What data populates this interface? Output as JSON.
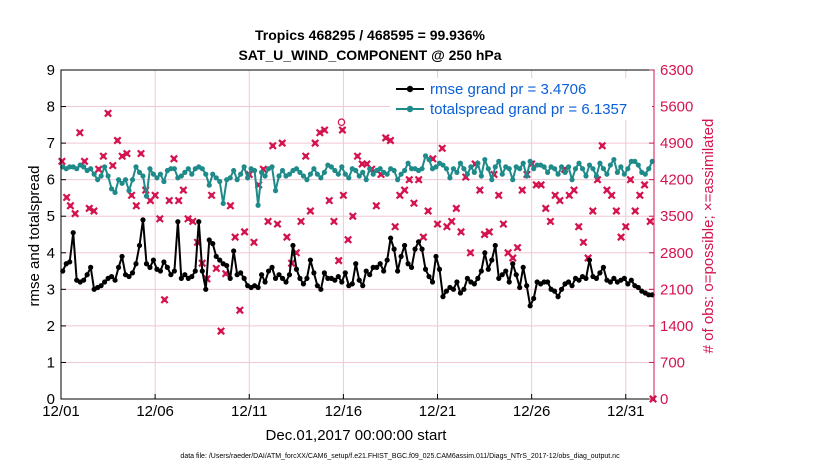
{
  "chart_data": {
    "type": "line",
    "title_line1": "Tropics 468295 / 468595 = 99.936%",
    "title_line2": "SAT_U_WIND_COMPONENT @ 250 hPa",
    "xlabel": "Dec.01,2017 00:00:00 start",
    "ylabel_left": "rmse and totalspread",
    "ylabel_right": "# of obs: o=possible; ×=assimilated",
    "footer": "data file: /Users/raeder/DAI/ATM_forcXX/CAM6_setup/f.e21.FHIST_BGC.f09_025.CAM6assim.011/Diags_NTrS_2017-12/obs_diag_output.nc",
    "x_ticks": [
      "12/01",
      "12/06",
      "12/11",
      "12/16",
      "12/21",
      "12/26",
      "12/31"
    ],
    "x_tick_days": [
      0,
      5,
      10,
      15,
      20,
      25,
      30
    ],
    "xlim": [
      0,
      31.5
    ],
    "y_left_ticks": [
      "0",
      "1",
      "2",
      "3",
      "4",
      "5",
      "6",
      "7",
      "8",
      "9"
    ],
    "ylim_left": [
      0,
      9
    ],
    "y_right_ticks": [
      "0",
      "700",
      "1400",
      "2100",
      "2800",
      "3500",
      "4200",
      "4900",
      "5600",
      "6300"
    ],
    "ylim_right": [
      0,
      6300
    ],
    "series": [
      {
        "name": "rmse grand pr = 3.4706",
        "legend": "rmse grand pr = 3.4706",
        "axis": "left",
        "color": "#000000",
        "values": [
          3.5,
          3.7,
          3.75,
          4.55,
          3.25,
          3.2,
          3.25,
          3.4,
          3.6,
          3.0,
          3.05,
          3.1,
          3.2,
          3.3,
          3.35,
          3.25,
          3.6,
          3.9,
          3.4,
          3.35,
          3.45,
          3.7,
          4.2,
          4.9,
          3.7,
          3.6,
          3.8,
          3.55,
          3.5,
          3.75,
          3.6,
          3.4,
          3.5,
          4.85,
          3.3,
          3.4,
          3.3,
          3.35,
          3.5,
          4.85,
          3.5,
          3.0,
          4.35,
          4.25,
          3.9,
          3.8,
          3.7,
          3.65,
          3.3,
          4.05,
          3.4,
          3.45,
          3.3,
          3.1,
          3.05,
          3.1,
          3.05,
          3.4,
          3.2,
          3.5,
          3.6,
          3.3,
          3.4,
          3.3,
          3.2,
          3.4,
          4.2,
          3.55,
          3.3,
          3.15,
          3.3,
          3.8,
          3.45,
          3.1,
          3.0,
          3.45,
          3.3,
          3.3,
          3.25,
          3.35,
          3.2,
          3.45,
          3.1,
          3.15,
          3.7,
          3.25,
          3.1,
          3.5,
          3.4,
          3.6,
          3.6,
          3.7,
          3.5,
          3.8,
          4.4,
          4.1,
          3.5,
          3.9,
          4.2,
          3.7,
          3.6,
          4.1,
          4.3,
          4.1,
          3.55,
          3.35,
          3.2,
          3.9,
          3.55,
          2.8,
          2.95,
          3.05,
          3.0,
          3.2,
          2.9,
          3.0,
          3.3,
          3.2,
          3.15,
          3.3,
          3.5,
          4.0,
          3.55,
          3.8,
          4.2,
          3.3,
          3.4,
          3.5,
          3.2,
          3.7,
          3.4,
          3.05,
          3.6,
          3.1,
          2.55,
          2.75,
          3.2,
          3.15,
          3.2,
          3.2,
          3.0,
          2.95,
          2.8,
          3.0,
          3.15,
          3.2,
          3.1,
          3.3,
          3.25,
          3.35,
          3.3,
          3.8,
          3.35,
          3.3,
          3.45,
          3.6,
          3.25,
          3.2,
          3.3,
          3.2,
          3.25,
          3.3,
          3.15,
          3.25,
          3.1,
          3.05,
          2.95,
          2.9,
          2.85,
          2.85
        ]
      },
      {
        "name": "totalspread grand pr = 6.1357",
        "legend": "totalspread grand pr = 6.1357",
        "axis": "left",
        "color": "#1f8a8a",
        "values": [
          6.35,
          6.3,
          6.35,
          6.35,
          6.3,
          6.4,
          6.35,
          6.25,
          6.3,
          6.15,
          6.0,
          6.1,
          6.35,
          6.1,
          5.75,
          5.65,
          6.0,
          5.9,
          6.0,
          5.7,
          6.0,
          6.35,
          6.2,
          6.1,
          5.55,
          6.3,
          6.15,
          6.05,
          6.15,
          5.95,
          6.25,
          6.3,
          6.3,
          6.05,
          6.1,
          6.2,
          6.3,
          6.15,
          6.3,
          6.35,
          6.3,
          6.15,
          5.85,
          6.15,
          6.05,
          5.95,
          5.35,
          6.0,
          6.05,
          6.25,
          6.0,
          6.15,
          6.35,
          6.05,
          6.3,
          6.25,
          5.3,
          6.2,
          6.1,
          6.3,
          6.35,
          5.7,
          6.1,
          6.25,
          6.1,
          6.15,
          6.25,
          6.3,
          6.2,
          6.1,
          6.0,
          6.15,
          6.3,
          6.15,
          6.05,
          6.2,
          6.4,
          6.35,
          6.25,
          6.15,
          6.35,
          6.15,
          6.05,
          6.3,
          6.25,
          6.1,
          6.2,
          6.0,
          6.3,
          6.15,
          6.25,
          6.3,
          6.2,
          6.15,
          6.3,
          6.25,
          6.0,
          6.15,
          6.25,
          6.45,
          6.3,
          6.3,
          6.25,
          6.3,
          6.65,
          6.55,
          6.3,
          6.35,
          6.45,
          6.4,
          6.3,
          6.05,
          6.3,
          6.2,
          6.45,
          6.3,
          6.15,
          6.35,
          6.2,
          6.45,
          6.1,
          6.55,
          6.3,
          6.0,
          6.35,
          6.5,
          6.15,
          6.35,
          6.3,
          6.0,
          6.35,
          6.3,
          6.45,
          6.1,
          6.5,
          6.3,
          6.4,
          6.4,
          6.35,
          6.2,
          6.35,
          6.3,
          6.15,
          6.35,
          6.2,
          6.35,
          6.0,
          6.3,
          6.45,
          6.3,
          6.1,
          6.4,
          6.3,
          6.1,
          6.45,
          6.3,
          6.15,
          6.4,
          6.55,
          6.2,
          6.35,
          6.15,
          6.3,
          6.5,
          6.5,
          6.4,
          6.2,
          6.15,
          6.3,
          6.5
        ]
      },
      {
        "name": "obs assimilated",
        "axis": "right",
        "color": "#d4144f",
        "marker": "x",
        "days": [
          0.05,
          0.3,
          0.5,
          0.75,
          1.0,
          1.25,
          1.5,
          1.75,
          2.0,
          2.25,
          2.5,
          2.75,
          3.0,
          3.25,
          3.5,
          3.75,
          4.0,
          4.25,
          4.5,
          4.75,
          5.0,
          5.25,
          5.5,
          5.75,
          6.0,
          6.25,
          6.5,
          6.75,
          7.0,
          7.25,
          7.5,
          7.75,
          8.0,
          8.25,
          8.5,
          8.75,
          9.0,
          9.25,
          9.5,
          9.75,
          10.0,
          10.25,
          10.5,
          10.75,
          11.0,
          11.25,
          11.5,
          11.75,
          12.0,
          12.25,
          12.5,
          12.75,
          13.0,
          13.25,
          13.5,
          13.75,
          14.0,
          14.25,
          14.5,
          14.75,
          15.0,
          15.25,
          15.5,
          15.75,
          16.0,
          16.25,
          16.5,
          16.75,
          17.0,
          17.25,
          17.5,
          17.75,
          18.0,
          18.25,
          18.5,
          18.75,
          19.0,
          19.25,
          19.5,
          19.75,
          20.0,
          20.25,
          20.5,
          20.75,
          21.0,
          21.25,
          21.5,
          21.75,
          22.0,
          22.25,
          22.5,
          22.75,
          23.0,
          23.25,
          23.5,
          23.75,
          24.0,
          24.25,
          24.5,
          24.75,
          25.0,
          25.25,
          25.5,
          25.75,
          26.0,
          26.25,
          26.5,
          26.75,
          27.0,
          27.25,
          27.5,
          27.75,
          28.0,
          28.25,
          28.5,
          28.75,
          29.0,
          29.25,
          29.5,
          29.75,
          30.0,
          30.25,
          30.5,
          30.75,
          31.0,
          31.3
        ],
        "values": [
          4550,
          3860,
          3700,
          3550,
          5100,
          4550,
          3650,
          3600,
          4400,
          4650,
          5470,
          4470,
          4950,
          4650,
          4700,
          3900,
          3700,
          4700,
          4000,
          3800,
          3900,
          3450,
          1900,
          3800,
          4600,
          3800,
          4000,
          3450,
          3400,
          3000,
          2600,
          2300,
          3900,
          2500,
          1300,
          2400,
          3700,
          3100,
          1700,
          3200,
          4300,
          3000,
          4100,
          4400,
          3400,
          4850,
          3350,
          4900,
          3100,
          2600,
          2800,
          3400,
          4650,
          3600,
          4900,
          5100,
          5150,
          3800,
          3400,
          2650,
          3900,
          3050,
          3500,
          4650,
          4500,
          4500,
          4400,
          3700,
          4300,
          5000,
          4950,
          3300,
          3900,
          4000,
          4200,
          3750,
          4200,
          3100,
          3600,
          4600,
          3350,
          4800,
          3300,
          3400,
          3650,
          3200,
          4250,
          2800,
          4500,
          4000,
          3150,
          3200,
          4300,
          3900,
          3350,
          2800,
          2700,
          2900,
          4000,
          4300,
          4500,
          4100,
          4100,
          3650,
          3400,
          3900,
          3800,
          4400,
          3900,
          4000,
          3300,
          3000,
          2700,
          3600,
          4200,
          4850,
          4000,
          3900,
          3600,
          3100,
          3300,
          4200,
          3600,
          3900,
          4100,
          3400
        ],
        "markers_extra": [
          5300,
          5150,
          0
        ]
      }
    ]
  }
}
